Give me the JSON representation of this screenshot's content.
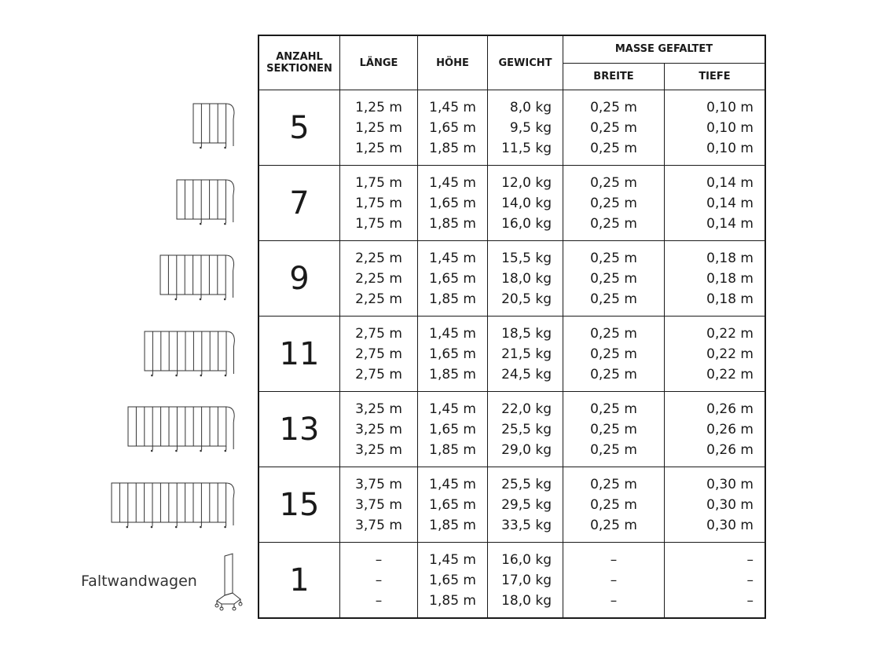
{
  "header": {
    "anzahl": "ANZAHL SEKTIONEN",
    "laenge": "LÄNGE",
    "hoehe": "HÖHE",
    "gewicht": "GEWICHT",
    "masse_gefaltet": "MASSE GEFALTET",
    "breite": "BREITE",
    "tiefe": "TIEFE"
  },
  "rows": [
    {
      "sections": "5",
      "panels": 5,
      "laenge": "1,25 m\n1,25 m\n1,25 m",
      "hoehe": "1,45 m\n1,65 m\n1,85 m",
      "gewicht": "8,0 kg\n9,5 kg\n11,5 kg",
      "breite": "0,25 m\n0,25 m\n0,25 m",
      "tiefe": "0,10 m\n0,10 m\n0,10 m"
    },
    {
      "sections": "7",
      "panels": 7,
      "laenge": "1,75 m\n1,75 m\n1,75 m",
      "hoehe": "1,45 m\n1,65 m\n1,85 m",
      "gewicht": "12,0 kg\n14,0 kg\n16,0 kg",
      "breite": "0,25 m\n0,25 m\n0,25 m",
      "tiefe": "0,14 m\n0,14 m\n0,14 m"
    },
    {
      "sections": "9",
      "panels": 9,
      "laenge": "2,25 m\n2,25 m\n2,25 m",
      "hoehe": "1,45 m\n1,65 m\n1,85 m",
      "gewicht": "15,5 kg\n18,0 kg\n20,5 kg",
      "breite": "0,25 m\n0,25 m\n0,25 m",
      "tiefe": "0,18 m\n0,18 m\n0,18 m"
    },
    {
      "sections": "11",
      "panels": 11,
      "laenge": "2,75 m\n2,75 m\n2,75 m",
      "hoehe": "1,45 m\n1,65 m\n1,85 m",
      "gewicht": "18,5 kg\n21,5 kg\n24,5 kg",
      "breite": "0,25 m\n0,25 m\n0,25 m",
      "tiefe": "0,22 m\n0,22 m\n0,22 m"
    },
    {
      "sections": "13",
      "panels": 13,
      "laenge": "3,25 m\n3,25 m\n3,25 m",
      "hoehe": "1,45 m\n1,65 m\n1,85 m",
      "gewicht": "22,0 kg\n25,5 kg\n29,0 kg",
      "breite": "0,25 m\n0,25 m\n0,25 m",
      "tiefe": "0,26 m\n0,26 m\n0,26 m"
    },
    {
      "sections": "15",
      "panels": 15,
      "laenge": "3,75 m\n3,75 m\n3,75 m",
      "hoehe": "1,45 m\n1,65 m\n1,85 m",
      "gewicht": "25,5 kg\n29,5 kg\n33,5 kg",
      "breite": "0,25 m\n0,25 m\n0,25 m",
      "tiefe": "0,30 m\n0,30 m\n0,30 m"
    },
    {
      "sections": "1",
      "label": "Faltwandwagen",
      "laenge": "–\n–\n–",
      "hoehe": "1,45 m\n1,65 m\n1,85 m",
      "gewicht": "16,0 kg\n17,0 kg\n18,0 kg",
      "breite": "–\n–\n–",
      "tiefe": "–\n–\n–"
    }
  ]
}
